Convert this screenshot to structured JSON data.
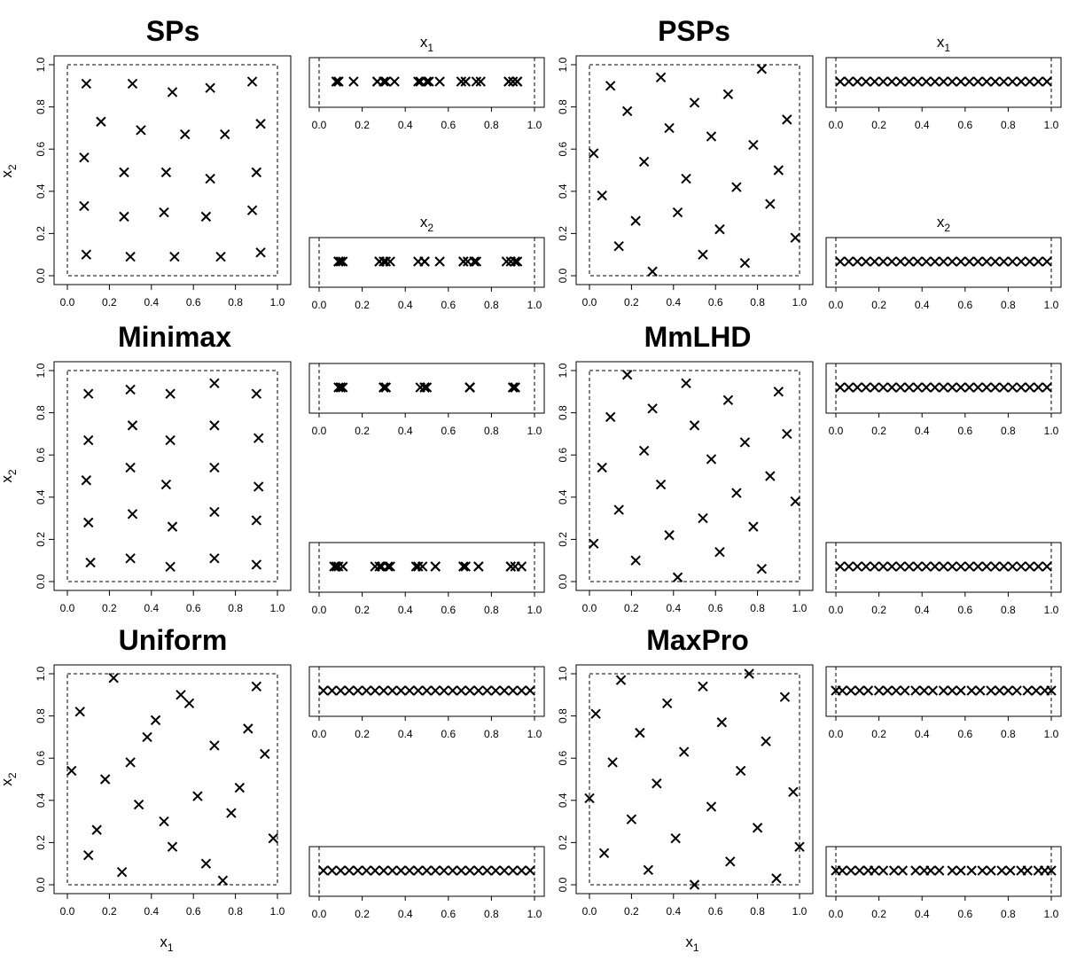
{
  "axis": {
    "ticks": [
      0,
      0.2,
      0.4,
      0.6,
      0.8,
      1
    ],
    "tick_labels": [
      "0.0",
      "0.2",
      "0.4",
      "0.6",
      "0.8",
      "1.0"
    ],
    "x_label": "x",
    "x_label_sub": "1",
    "y_label": "x",
    "y_label_sub": "2"
  },
  "chart_data": [
    {
      "type": "scatter",
      "title": "SPs",
      "xlim": [
        0,
        1
      ],
      "ylim": [
        0,
        1
      ],
      "marker": "x",
      "grid": false,
      "dashed_bounds": [
        0,
        1
      ],
      "marginal_titles": [
        "x",
        "x"
      ],
      "marginal_title_subs": [
        "1",
        "2"
      ],
      "x": [
        0.09,
        0.31,
        0.5,
        0.68,
        0.88,
        0.16,
        0.35,
        0.56,
        0.75,
        0.92,
        0.08,
        0.27,
        0.47,
        0.68,
        0.9,
        0.08,
        0.27,
        0.46,
        0.66,
        0.88,
        0.09,
        0.3,
        0.51,
        0.73,
        0.92
      ],
      "y": [
        0.91,
        0.91,
        0.87,
        0.89,
        0.92,
        0.73,
        0.69,
        0.67,
        0.67,
        0.72,
        0.56,
        0.49,
        0.49,
        0.46,
        0.49,
        0.33,
        0.28,
        0.3,
        0.28,
        0.31,
        0.1,
        0.09,
        0.09,
        0.09,
        0.11
      ]
    },
    {
      "type": "scatter",
      "title": "PSPs",
      "xlim": [
        0,
        1
      ],
      "ylim": [
        0,
        1
      ],
      "marker": "x",
      "grid": false,
      "dashed_bounds": [
        0,
        1
      ],
      "marginal_titles": [
        "x",
        "x"
      ],
      "marginal_title_subs": [
        "1",
        "2"
      ],
      "x": [
        0.02,
        0.06,
        0.1,
        0.14,
        0.18,
        0.22,
        0.26,
        0.3,
        0.34,
        0.38,
        0.42,
        0.46,
        0.5,
        0.54,
        0.58,
        0.62,
        0.66,
        0.7,
        0.74,
        0.78,
        0.82,
        0.86,
        0.9,
        0.94,
        0.98
      ],
      "y": [
        0.58,
        0.38,
        0.9,
        0.14,
        0.78,
        0.26,
        0.54,
        0.02,
        0.94,
        0.7,
        0.3,
        0.46,
        0.82,
        0.1,
        0.66,
        0.22,
        0.86,
        0.42,
        0.06,
        0.62,
        0.98,
        0.34,
        0.5,
        0.74,
        0.18
      ]
    },
    {
      "type": "scatter",
      "title": "Minimax",
      "xlim": [
        0,
        1
      ],
      "ylim": [
        0,
        1
      ],
      "marker": "x",
      "grid": false,
      "dashed_bounds": [
        0,
        1
      ],
      "x": [
        0.1,
        0.3,
        0.49,
        0.7,
        0.9,
        0.1,
        0.31,
        0.49,
        0.7,
        0.91,
        0.09,
        0.3,
        0.47,
        0.7,
        0.91,
        0.1,
        0.31,
        0.5,
        0.7,
        0.9,
        0.11,
        0.3,
        0.49,
        0.7,
        0.9
      ],
      "y": [
        0.89,
        0.91,
        0.89,
        0.94,
        0.89,
        0.67,
        0.74,
        0.67,
        0.74,
        0.68,
        0.48,
        0.54,
        0.46,
        0.54,
        0.45,
        0.28,
        0.32,
        0.26,
        0.33,
        0.29,
        0.09,
        0.11,
        0.07,
        0.11,
        0.08
      ]
    },
    {
      "type": "scatter",
      "title": "MmLHD",
      "xlim": [
        0,
        1
      ],
      "ylim": [
        0,
        1
      ],
      "marker": "x",
      "grid": false,
      "dashed_bounds": [
        0,
        1
      ],
      "x": [
        0.02,
        0.06,
        0.1,
        0.14,
        0.18,
        0.22,
        0.26,
        0.3,
        0.34,
        0.38,
        0.42,
        0.46,
        0.5,
        0.54,
        0.58,
        0.62,
        0.66,
        0.7,
        0.74,
        0.78,
        0.82,
        0.86,
        0.9,
        0.94,
        0.98
      ],
      "y": [
        0.18,
        0.54,
        0.78,
        0.34,
        0.98,
        0.1,
        0.62,
        0.82,
        0.46,
        0.22,
        0.02,
        0.94,
        0.74,
        0.3,
        0.58,
        0.14,
        0.86,
        0.42,
        0.66,
        0.26,
        0.06,
        0.5,
        0.9,
        0.7,
        0.38
      ]
    },
    {
      "type": "scatter",
      "title": "Uniform",
      "xlim": [
        0,
        1
      ],
      "ylim": [
        0,
        1
      ],
      "marker": "x",
      "grid": false,
      "dashed_bounds": [
        0,
        1
      ],
      "x": [
        0.02,
        0.06,
        0.1,
        0.14,
        0.18,
        0.22,
        0.26,
        0.3,
        0.34,
        0.38,
        0.42,
        0.46,
        0.5,
        0.54,
        0.58,
        0.62,
        0.66,
        0.7,
        0.74,
        0.78,
        0.82,
        0.86,
        0.9,
        0.94,
        0.98
      ],
      "y": [
        0.54,
        0.82,
        0.14,
        0.26,
        0.5,
        0.98,
        0.06,
        0.58,
        0.38,
        0.7,
        0.78,
        0.3,
        0.18,
        0.9,
        0.86,
        0.42,
        0.1,
        0.66,
        0.02,
        0.34,
        0.46,
        0.74,
        0.94,
        0.62,
        0.22
      ]
    },
    {
      "type": "scatter",
      "title": "MaxPro",
      "xlim": [
        0,
        1
      ],
      "ylim": [
        0,
        1
      ],
      "marker": "x",
      "grid": false,
      "dashed_bounds": [
        0,
        1
      ],
      "x": [
        0.0,
        0.03,
        0.07,
        0.11,
        0.15,
        0.2,
        0.24,
        0.28,
        0.32,
        0.37,
        0.41,
        0.45,
        0.5,
        0.54,
        0.58,
        0.63,
        0.67,
        0.72,
        0.76,
        0.8,
        0.84,
        0.89,
        0.93,
        0.97,
        1.0
      ],
      "y": [
        0.41,
        0.81,
        0.15,
        0.58,
        0.97,
        0.31,
        0.72,
        0.07,
        0.48,
        0.86,
        0.22,
        0.63,
        0.0,
        0.94,
        0.37,
        0.77,
        0.11,
        0.54,
        1.0,
        0.27,
        0.68,
        0.03,
        0.89,
        0.44,
        0.18
      ]
    }
  ]
}
